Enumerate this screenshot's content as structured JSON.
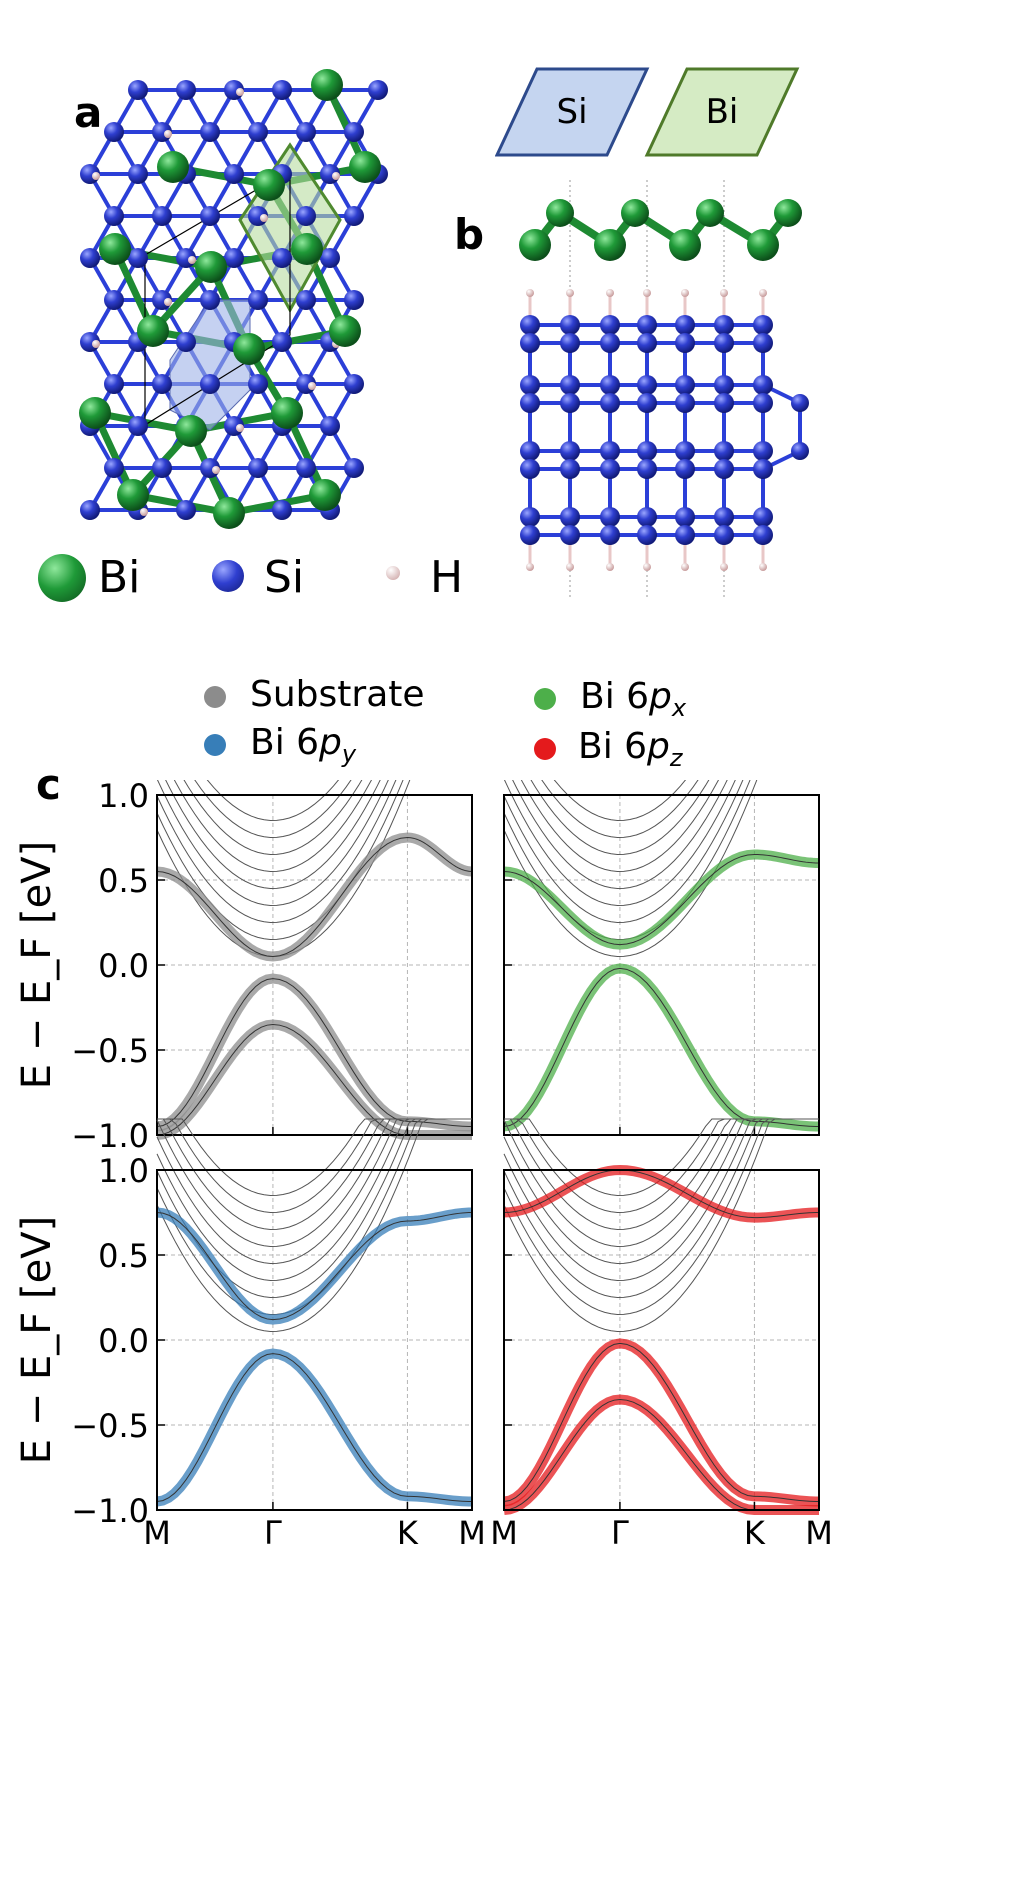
{
  "figure": {
    "panel_a": "a",
    "panel_b": "b",
    "panel_c": "c",
    "layer_labels": {
      "si": "Si",
      "bi": "Bi"
    },
    "atom_legend": [
      {
        "label": "Bi",
        "color": "#1e8a32"
      },
      {
        "label": "Si",
        "color": "#2f3fc8"
      },
      {
        "label": "H",
        "color": "#e8c7c7"
      }
    ],
    "band_legend": [
      {
        "text": "Substrate",
        "orbital": "",
        "color": "#8c8c8c"
      },
      {
        "text": "Bi 6",
        "orbital": "x",
        "color": "#4daf4a"
      },
      {
        "text": "Bi 6",
        "orbital": "y",
        "color": "#377eb8"
      },
      {
        "text": "Bi 6",
        "orbital": "z",
        "color": "#e41a1c"
      }
    ]
  },
  "chart_data": [
    {
      "type": "line",
      "panel": "top-left",
      "projection": "Substrate",
      "color": "#8c8c8c",
      "ylabel": "E − E_F [eV]",
      "ylim": [
        -1.0,
        1.0
      ],
      "yticks": [
        "1.0",
        "0.5",
        "0.0",
        "−0.5",
        "−1.0"
      ],
      "xticks": [
        "M",
        "Γ",
        "K",
        "M"
      ],
      "grid": true,
      "bands": {
        "valence_top": {
          "x": [
            "M",
            "Γ",
            "K",
            "M"
          ],
          "y": [
            -0.95,
            -0.08,
            -0.92,
            -0.95
          ]
        },
        "valence_second": {
          "x": [
            "M",
            "Γ",
            "K",
            "M"
          ],
          "y": [
            -1.0,
            -0.35,
            -1.0,
            -1.0
          ]
        },
        "conduction_min": {
          "x": [
            "M",
            "Γ",
            "K",
            "M"
          ],
          "y": [
            0.55,
            0.05,
            0.75,
            0.55
          ]
        }
      }
    },
    {
      "type": "line",
      "panel": "top-right",
      "projection": "Bi 6px",
      "color": "#4daf4a",
      "ylim": [
        -1.0,
        1.0
      ],
      "xticks": [
        "M",
        "Γ",
        "K",
        "M"
      ],
      "grid": true,
      "bands": {
        "valence_top": {
          "x": [
            "M",
            "Γ",
            "K",
            "M"
          ],
          "y": [
            -0.95,
            -0.02,
            -0.92,
            -0.95
          ]
        },
        "conduction_min": {
          "x": [
            "M",
            "Γ",
            "K",
            "M"
          ],
          "y": [
            0.55,
            0.12,
            0.65,
            0.6
          ]
        }
      }
    },
    {
      "type": "line",
      "panel": "bottom-left",
      "projection": "Bi 6py",
      "color": "#377eb8",
      "ylabel": "E − E_F [eV]",
      "ylim": [
        -1.0,
        1.0
      ],
      "yticks": [
        "1.0",
        "0.5",
        "0.0",
        "−0.5",
        "−1.0"
      ],
      "xticks": [
        "M",
        "Γ",
        "K",
        "M"
      ],
      "grid": true,
      "bands": {
        "valence_top": {
          "x": [
            "M",
            "Γ",
            "K",
            "M"
          ],
          "y": [
            -0.95,
            -0.08,
            -0.92,
            -0.95
          ]
        },
        "conduction_min": {
          "x": [
            "M",
            "Γ",
            "K",
            "M"
          ],
          "y": [
            0.75,
            0.12,
            0.7,
            0.75
          ]
        }
      }
    },
    {
      "type": "line",
      "panel": "bottom-right",
      "projection": "Bi 6pz",
      "color": "#e41a1c",
      "ylim": [
        -1.0,
        1.0
      ],
      "xticks": [
        "M",
        "Γ",
        "K",
        "M"
      ],
      "grid": true,
      "bands": {
        "valence_top": {
          "x": [
            "M",
            "Γ",
            "K",
            "M"
          ],
          "y": [
            -0.95,
            -0.02,
            -0.92,
            -0.95
          ]
        },
        "valence_second": {
          "x": [
            "M",
            "Γ",
            "K",
            "M"
          ],
          "y": [
            -1.0,
            -0.35,
            -1.0,
            -1.0
          ]
        },
        "conduction_bi": {
          "x": [
            "M",
            "Γ",
            "K",
            "M"
          ],
          "y": [
            0.75,
            1.0,
            0.72,
            0.75
          ]
        }
      }
    }
  ]
}
